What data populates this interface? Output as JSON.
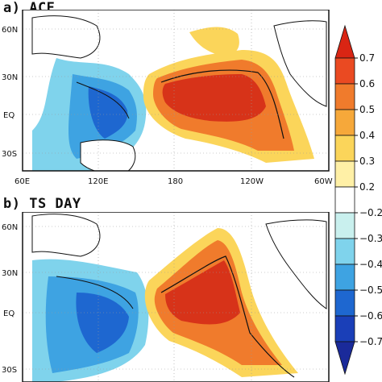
{
  "panels": [
    {
      "id": "a",
      "title": "a) ACE",
      "lat_labels": [
        "60N",
        "30N",
        "EQ",
        "30S"
      ],
      "lon_labels": [
        "60E",
        "120E",
        "180",
        "120W",
        "60W"
      ]
    },
    {
      "id": "b",
      "title": "b) TS DAY",
      "lat_labels": [
        "60N",
        "30N",
        "EQ",
        "30S"
      ],
      "lon_labels": []
    }
  ],
  "colorbar": {
    "labels": [
      "0.7",
      "0.6",
      "0.5",
      "0.4",
      "0.3",
      "0.2",
      "−0.2",
      "−0.3",
      "−0.4",
      "−0.5",
      "−0.6",
      "−0.7"
    ],
    "colors": [
      "#d92514",
      "#ea4a22",
      "#f07b2c",
      "#f6a83a",
      "#fbd55a",
      "#fff0a6",
      "#ffffff",
      "#c9f0ee",
      "#7fd3ec",
      "#3ea3e2",
      "#1e67d0",
      "#1a3fb8",
      "#1a2a9a"
    ]
  },
  "map_colors": {
    "positive_strong": "#d73319",
    "positive_mid": "#f07b2c",
    "positive_weak": "#fbd55a",
    "negative_weak": "#7fd3ec",
    "negative_mid": "#3ea3e2",
    "negative_strong": "#1e67d0",
    "coastline": "#111111"
  }
}
